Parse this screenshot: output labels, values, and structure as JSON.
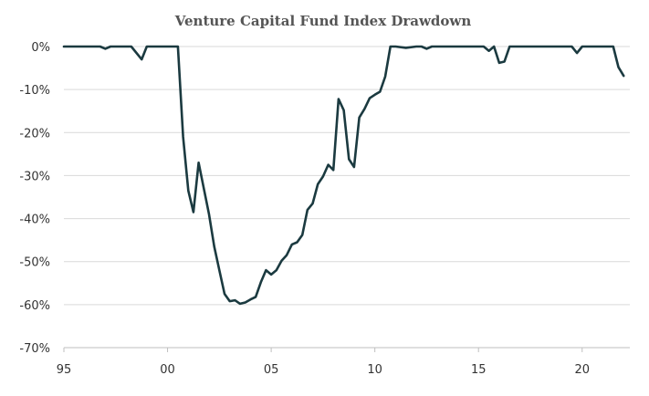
{
  "chart_data": {
    "type": "line",
    "title": "Venture Capital Fund Index Drawdown",
    "xlabel": "",
    "ylabel": "",
    "x_range": [
      1995,
      2022.3
    ],
    "ylim": [
      -70,
      0
    ],
    "x_ticks": [
      {
        "value": 1995,
        "label": "95"
      },
      {
        "value": 2000,
        "label": "00"
      },
      {
        "value": 2005,
        "label": "05"
      },
      {
        "value": 2010,
        "label": "10"
      },
      {
        "value": 2015,
        "label": "15"
      },
      {
        "value": 2020,
        "label": "20"
      }
    ],
    "y_ticks": [
      {
        "value": 0,
        "label": "0%"
      },
      {
        "value": -10,
        "label": "-10%"
      },
      {
        "value": -20,
        "label": "-20%"
      },
      {
        "value": -30,
        "label": "-30%"
      },
      {
        "value": -40,
        "label": "-40%"
      },
      {
        "value": -50,
        "label": "-50%"
      },
      {
        "value": -60,
        "label": "-60%"
      },
      {
        "value": -70,
        "label": "-70%"
      }
    ],
    "grid": true,
    "legend": "none",
    "series": [
      {
        "color": "#1b3a40",
        "points": [
          [
            1995.0,
            0
          ],
          [
            1996.0,
            0
          ],
          [
            1996.75,
            0
          ],
          [
            1997.0,
            -0.5
          ],
          [
            1997.25,
            0
          ],
          [
            1998.0,
            0
          ],
          [
            1998.25,
            0
          ],
          [
            1998.75,
            -3
          ],
          [
            1999.0,
            0
          ],
          [
            1999.5,
            0
          ],
          [
            2000.0,
            0
          ],
          [
            2000.5,
            0
          ],
          [
            2000.75,
            -21
          ],
          [
            2001.0,
            -33.5
          ],
          [
            2001.25,
            -38.5
          ],
          [
            2001.5,
            -27
          ],
          [
            2001.75,
            -33
          ],
          [
            2002.0,
            -39
          ],
          [
            2002.25,
            -46.5
          ],
          [
            2002.5,
            -52
          ],
          [
            2002.75,
            -57.5
          ],
          [
            2003.0,
            -59.2
          ],
          [
            2003.25,
            -59
          ],
          [
            2003.5,
            -59.8
          ],
          [
            2003.75,
            -59.5
          ],
          [
            2004.0,
            -58.8
          ],
          [
            2004.25,
            -58.2
          ],
          [
            2004.5,
            -54.8
          ],
          [
            2004.75,
            -52
          ],
          [
            2005.0,
            -53
          ],
          [
            2005.25,
            -52
          ],
          [
            2005.5,
            -49.8
          ],
          [
            2005.75,
            -48.5
          ],
          [
            2006.0,
            -46
          ],
          [
            2006.25,
            -45.5
          ],
          [
            2006.5,
            -43.8
          ],
          [
            2006.75,
            -38
          ],
          [
            2007.0,
            -36.5
          ],
          [
            2007.25,
            -32
          ],
          [
            2007.5,
            -30.2
          ],
          [
            2007.75,
            -27.5
          ],
          [
            2008.0,
            -28.7
          ],
          [
            2008.25,
            -12.2
          ],
          [
            2008.5,
            -14.8
          ],
          [
            2008.75,
            -26.2
          ],
          [
            2009.0,
            -28
          ],
          [
            2009.25,
            -16.5
          ],
          [
            2009.5,
            -14.5
          ],
          [
            2009.75,
            -12
          ],
          [
            2010.0,
            -11.2
          ],
          [
            2010.25,
            -10.5
          ],
          [
            2010.5,
            -7
          ],
          [
            2010.75,
            0
          ],
          [
            2011.0,
            0
          ],
          [
            2011.5,
            -0.3
          ],
          [
            2012.0,
            0
          ],
          [
            2012.25,
            0
          ],
          [
            2012.5,
            -0.5
          ],
          [
            2012.75,
            0
          ],
          [
            2013.0,
            0
          ],
          [
            2014.0,
            0
          ],
          [
            2015.0,
            0
          ],
          [
            2015.25,
            0
          ],
          [
            2015.5,
            -1
          ],
          [
            2015.75,
            0
          ],
          [
            2016.0,
            -3.8
          ],
          [
            2016.25,
            -3.5
          ],
          [
            2016.5,
            0
          ],
          [
            2017.0,
            0
          ],
          [
            2018.0,
            0
          ],
          [
            2019.0,
            0
          ],
          [
            2019.5,
            0
          ],
          [
            2019.75,
            -1.5
          ],
          [
            2020.0,
            0
          ],
          [
            2020.5,
            0
          ],
          [
            2021.0,
            0
          ],
          [
            2021.5,
            0
          ],
          [
            2021.75,
            -4.8
          ],
          [
            2022.0,
            -6.8
          ]
        ]
      }
    ]
  }
}
